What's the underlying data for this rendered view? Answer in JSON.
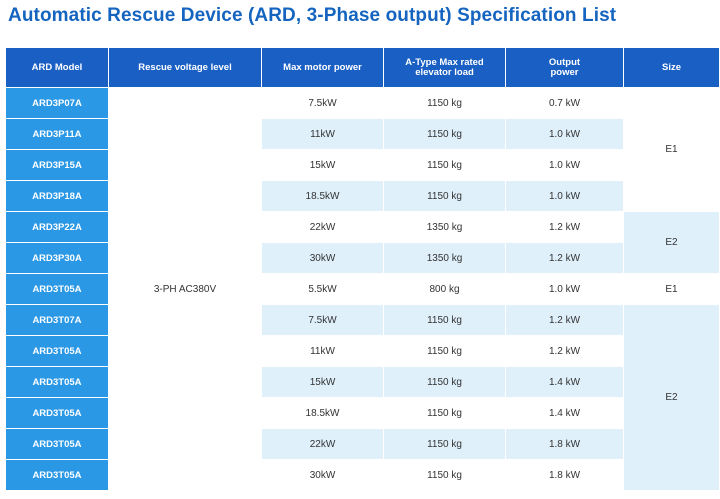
{
  "title": "Automatic Rescue Device (ARD, 3-Phase output) Specification List",
  "headers": {
    "model": "ARD Model",
    "voltage": "Rescue voltage level",
    "motor": "Max motor power",
    "load_line1": "A-Type Max rated",
    "load_line2": "elevator load",
    "output_line1": "Output",
    "output_line2": "power",
    "size": "Size"
  },
  "voltage_value": "3-PH AC380V",
  "rows": [
    {
      "model": "ARD3P07A",
      "motor": "7.5kW",
      "load": "1150 kg",
      "output": "0.7 kW"
    },
    {
      "model": "ARD3P11A",
      "motor": "11kW",
      "load": "1150 kg",
      "output": "1.0 kW"
    },
    {
      "model": "ARD3P15A",
      "motor": "15kW",
      "load": "1150 kg",
      "output": "1.0 kW"
    },
    {
      "model": "ARD3P18A",
      "motor": "18.5kW",
      "load": "1150 kg",
      "output": "1.0 kW"
    },
    {
      "model": "ARD3P22A",
      "motor": "22kW",
      "load": "1350 kg",
      "output": "1.2 kW"
    },
    {
      "model": "ARD3P30A",
      "motor": "30kW",
      "load": "1350 kg",
      "output": "1.2 kW"
    },
    {
      "model": "ARD3T05A",
      "motor": "5.5kW",
      "load": "800 kg",
      "output": "1.0 kW"
    },
    {
      "model": "ARD3T07A",
      "motor": "7.5kW",
      "load": "1150 kg",
      "output": "1.2 kW"
    },
    {
      "model": "ARD3T05A",
      "motor": "11kW",
      "load": "1150 kg",
      "output": "1.2 kW"
    },
    {
      "model": "ARD3T05A",
      "motor": "15kW",
      "load": "1150 kg",
      "output": "1.4 kW"
    },
    {
      "model": "ARD3T05A",
      "motor": "18.5kW",
      "load": "1150 kg",
      "output": "1.4 kW"
    },
    {
      "model": "ARD3T05A",
      "motor": "22kW",
      "load": "1150 kg",
      "output": "1.8 kW"
    },
    {
      "model": "ARD3T05A",
      "motor": "30kW",
      "load": "1150 kg",
      "output": "1.8 kW"
    }
  ],
  "sizes": [
    "E1",
    "E2",
    "E1",
    "E2"
  ],
  "colors": {
    "title": "#1565c0",
    "header_bg": "#1a5fc3",
    "model_bg": "#2b98e6",
    "alt_row_bg": "#dff0fb"
  }
}
